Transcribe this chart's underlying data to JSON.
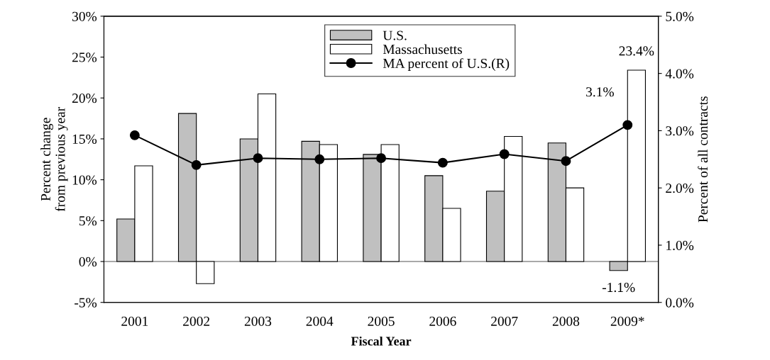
{
  "chart_data": {
    "type": "bar",
    "xlabel": "Fiscal Year",
    "ylabel": "Percent change\nfrom previous year",
    "y2label": "Percent of all contracts",
    "categories": [
      "2001",
      "2002",
      "2003",
      "2004",
      "2005",
      "2006",
      "2007",
      "2008",
      "2009*"
    ],
    "series": [
      {
        "name": "U.S.",
        "color": "#c0c0c0",
        "values": [
          5.2,
          18.1,
          15.0,
          14.7,
          13.1,
          10.5,
          8.6,
          14.5,
          -1.1
        ],
        "value_labels": [
          null,
          null,
          null,
          null,
          null,
          null,
          null,
          null,
          "-1.1%"
        ]
      },
      {
        "name": "Massachusetts",
        "color": "#ffffff",
        "values": [
          11.7,
          -2.7,
          20.5,
          14.3,
          14.3,
          6.5,
          15.3,
          9.0,
          23.4
        ],
        "value_labels": [
          null,
          null,
          null,
          null,
          null,
          null,
          null,
          null,
          "23.4%"
        ]
      },
      {
        "name": "MA percent of U.S.(R)",
        "type": "line",
        "axis": "y2",
        "color": "#000000",
        "values": [
          2.92,
          2.4,
          2.52,
          2.5,
          2.52,
          2.44,
          2.59,
          2.47,
          3.1
        ],
        "value_labels": [
          null,
          null,
          null,
          null,
          null,
          null,
          null,
          null,
          "3.1%"
        ]
      }
    ],
    "ylim": [
      -5,
      30
    ],
    "yticks": [
      {
        "value": -5,
        "label": "-5%"
      },
      {
        "value": 0,
        "label": "0%"
      },
      {
        "value": 5,
        "label": "5%"
      },
      {
        "value": 10,
        "label": "10%"
      },
      {
        "value": 15,
        "label": "15%"
      },
      {
        "value": 20,
        "label": "20%"
      },
      {
        "value": 25,
        "label": "25%"
      },
      {
        "value": 30,
        "label": "30%"
      }
    ],
    "y2lim": [
      0,
      5
    ],
    "y2ticks": [
      {
        "value": 0,
        "label": "0.0%"
      },
      {
        "value": 1,
        "label": "1.0%"
      },
      {
        "value": 2,
        "label": "2.0%"
      },
      {
        "value": 3,
        "label": "3.0%"
      },
      {
        "value": 4,
        "label": "4.0%"
      },
      {
        "value": 5,
        "label": "5.0%"
      }
    ],
    "ref_lines": [
      {
        "axis": "y",
        "value": 0,
        "color": "#555555"
      }
    ],
    "marker": "circle",
    "line_style": "solid",
    "legend": "top",
    "grid": false
  }
}
